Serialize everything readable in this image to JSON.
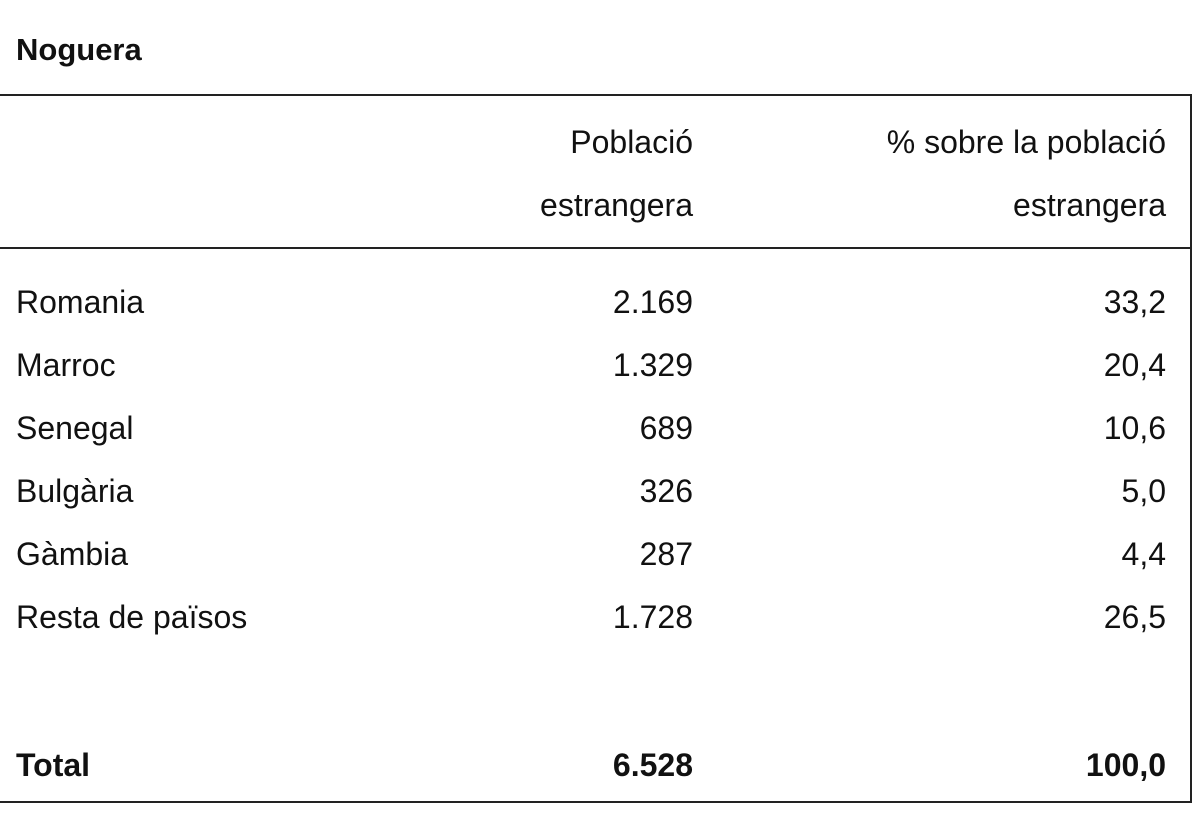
{
  "title": "Noguera",
  "table": {
    "header": [
      [
        "Població",
        "estrangera"
      ],
      [
        "% sobre la població",
        "estrangera"
      ]
    ],
    "rows": [
      [
        "Romania",
        "2.169",
        "33,2"
      ],
      [
        "Marroc",
        "1.329",
        "20,4"
      ],
      [
        "Senegal",
        "689",
        "10,6"
      ],
      [
        "Bulgària",
        "326",
        "5,0"
      ],
      [
        "Gàmbia",
        "287",
        "4,4"
      ],
      [
        "Resta de països",
        "1.728",
        "26,5"
      ]
    ],
    "total": [
      "Total",
      "6.528",
      "100,0"
    ]
  }
}
